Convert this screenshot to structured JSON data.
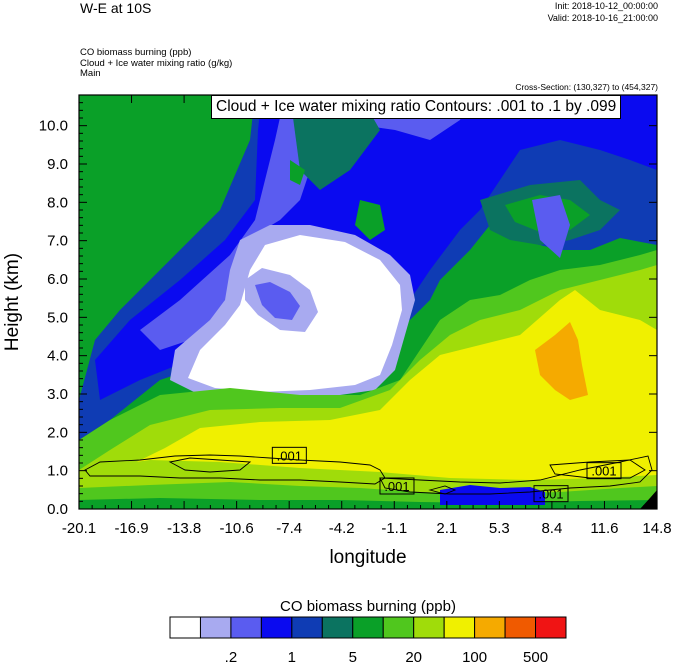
{
  "header": {
    "title": "W-E at 10S",
    "init": "Init: 2018-10-12_00:00:00",
    "valid": "Valid: 2018-10-16_21:00:00",
    "fields": [
      "CO biomass burning   (ppb)",
      "Cloud + Ice water mixing ratio   (g/kg)",
      "Main"
    ],
    "cross_section": "Cross-Section: (130,327) to (454,327)"
  },
  "contour_label": "Cloud + Ice water mixing ratio Contours: .001 to .1 by .099",
  "chart_data": {
    "type": "heatmap",
    "xlabel": "longitude",
    "ylabel": "Height (km)",
    "x_ticks": [
      "-20.1",
      "-16.9",
      "-13.8",
      "-10.6",
      "-7.4",
      "-4.2",
      "-1.1",
      "2.1",
      "5.3",
      "8.4",
      "11.6",
      "14.8"
    ],
    "y_ticks": [
      "0.0",
      "1.0",
      "2.0",
      "3.0",
      "4.0",
      "5.0",
      "6.0",
      "7.0",
      "8.0",
      "9.0",
      "10.0"
    ],
    "xlim": [
      -20.1,
      14.8
    ],
    "ylim": [
      0.0,
      10.8
    ],
    "contour_labels": [
      {
        "text": ".001",
        "x": -7.4,
        "y": 1.4
      },
      {
        "text": ".001",
        "x": -0.9,
        "y": 0.6
      },
      {
        "text": ".001",
        "x": 8.4,
        "y": 0.4
      },
      {
        "text": ".001",
        "x": 11.6,
        "y": 1.0
      }
    ],
    "colorbar": {
      "title": "CO biomass burning  (ppb)",
      "labels": [
        ".2",
        "1",
        "5",
        "20",
        "100",
        "500"
      ],
      "colors": [
        "#ffffff",
        "#a8aaf0",
        "#5a5cf0",
        "#0a0af0",
        "#0f3cb4",
        "#0b7360",
        "#0aa028",
        "#50c71e",
        "#a0dc0a",
        "#f0f000",
        "#f5aa00",
        "#f05a00",
        "#f01414"
      ]
    }
  }
}
